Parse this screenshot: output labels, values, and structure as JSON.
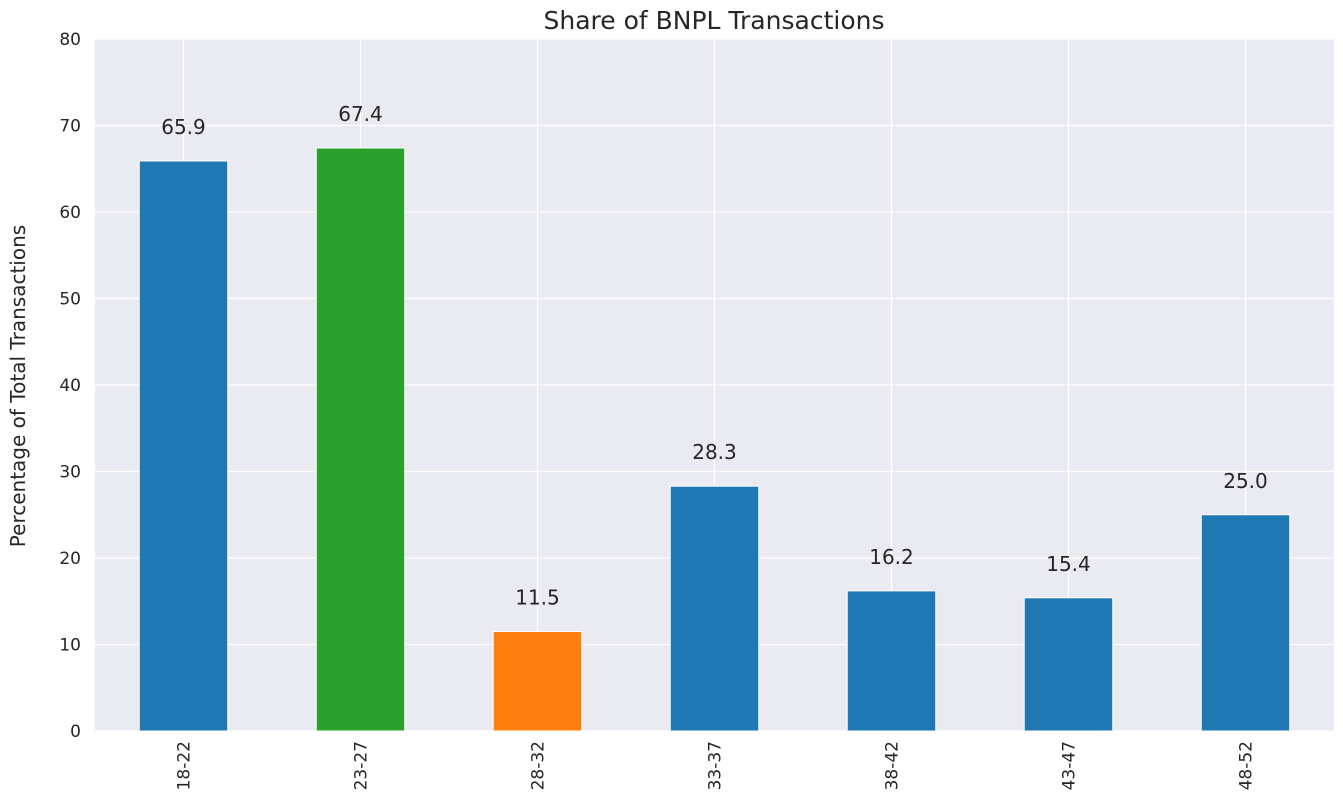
{
  "chart_data": {
    "type": "bar",
    "title": "Share of BNPL Transactions",
    "xlabel": "",
    "ylabel": "Percentage of Total Transactions",
    "categories": [
      "18-22",
      "23-27",
      "28-32",
      "33-37",
      "38-42",
      "43-47",
      "48-52"
    ],
    "values": [
      65.9,
      67.4,
      11.5,
      28.3,
      16.2,
      15.4,
      25.0
    ],
    "value_labels": [
      "65.9",
      "67.4",
      "11.5",
      "28.3",
      "16.2",
      "15.4",
      "25.0"
    ],
    "bar_colors": [
      "#1f77b4",
      "#2ca02c",
      "#ff7f0e",
      "#1f77b4",
      "#1f77b4",
      "#1f77b4",
      "#1f77b4"
    ],
    "ylim": [
      0,
      80
    ],
    "yticks": [
      0,
      10,
      20,
      30,
      40,
      50,
      60,
      70,
      80
    ],
    "ytick_labels": [
      "0",
      "10",
      "20",
      "30",
      "40",
      "50",
      "60",
      "70",
      "80"
    ],
    "grid": true,
    "background_color": "#eaeaf2",
    "grid_color": "#ffffff"
  }
}
